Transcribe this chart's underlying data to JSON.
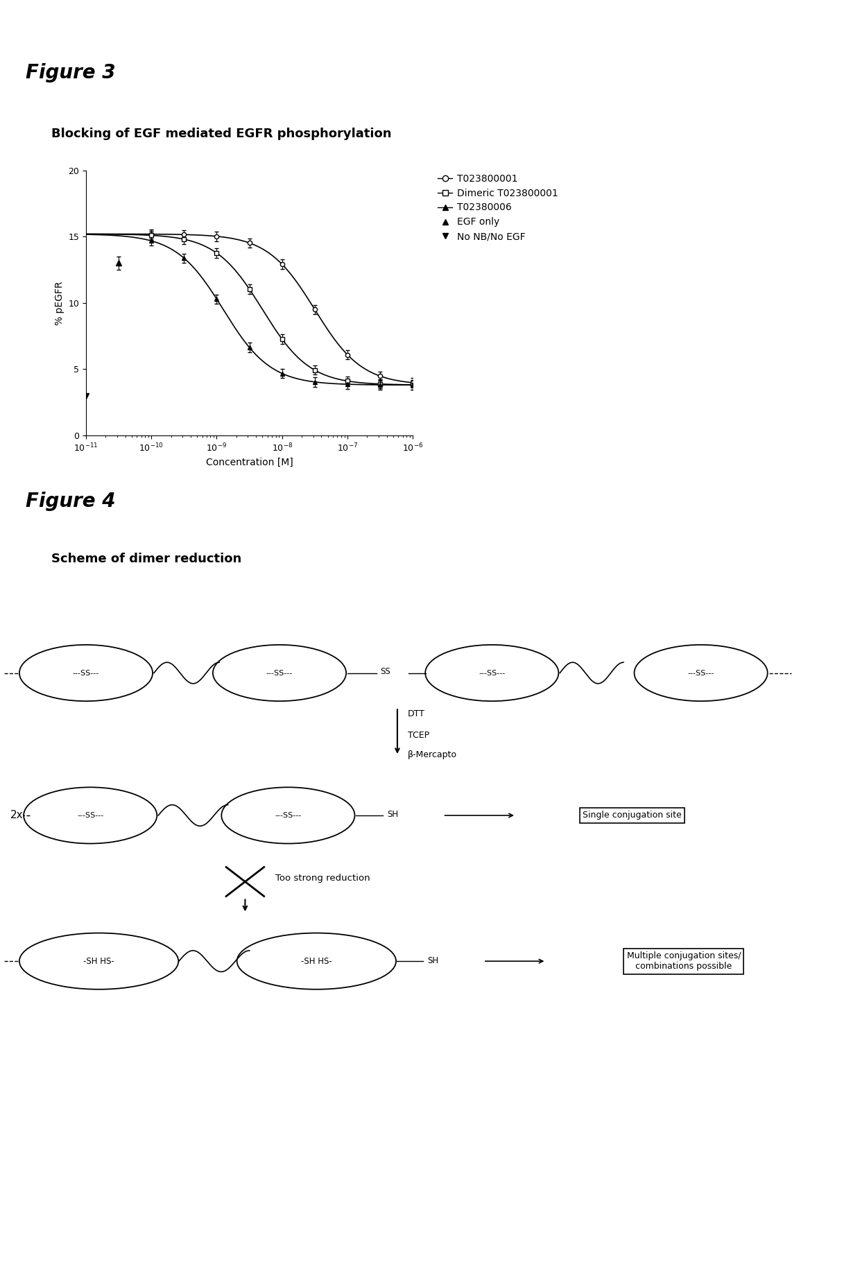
{
  "fig3_title": "Figure 3",
  "fig3_subtitle": "Blocking of EGF mediated EGFR phosphorylation",
  "fig4_title": "Figure 4",
  "fig4_subtitle": "Scheme of dimer reduction",
  "xlabel": "Concentration [M]",
  "ylabel": "% pEGFR",
  "ylim": [
    0,
    20
  ],
  "legend_labels": [
    "T023800001",
    "Dimeric T023800001",
    "T02380006",
    "EGF only",
    "No NB/No EGF"
  ],
  "background_color": "#ffffff",
  "line_color": "#000000",
  "font_size_title": 20,
  "font_size_subtitle": 13,
  "font_size_axis": 10,
  "font_size_tick": 9,
  "font_size_legend": 10
}
